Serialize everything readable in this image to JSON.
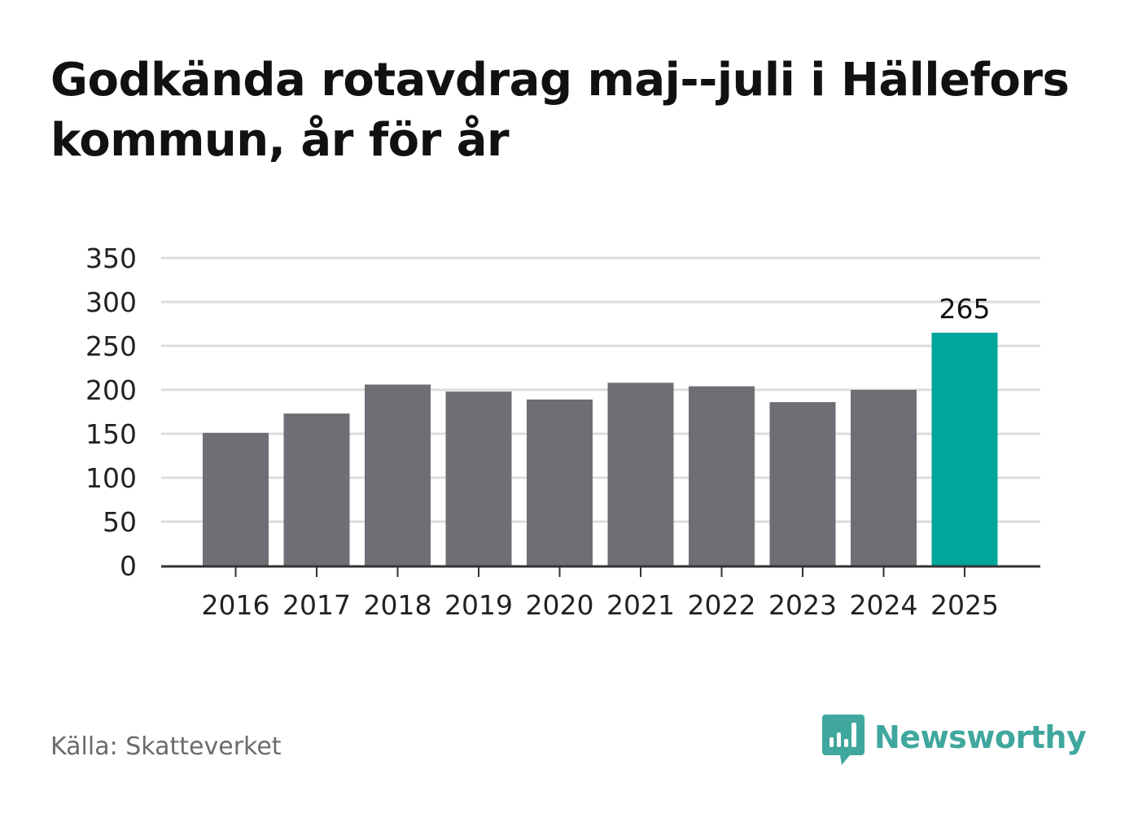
{
  "title": "Godkända rotavdrag maj--juli i Hällefors kommun, år för år",
  "source": "Källa: Skatteverket",
  "brand": {
    "name": "Newsworthy",
    "icon": "newsworthy-logo-icon",
    "color": "#3fa79d"
  },
  "chart_data": {
    "type": "bar",
    "categories": [
      "2016",
      "2017",
      "2018",
      "2019",
      "2020",
      "2021",
      "2022",
      "2023",
      "2024",
      "2025"
    ],
    "values": [
      151,
      173,
      206,
      198,
      189,
      208,
      204,
      186,
      200,
      265
    ],
    "ylim": [
      0,
      350
    ],
    "yticks": [
      0,
      50,
      100,
      150,
      200,
      250,
      300,
      350
    ],
    "grid": true,
    "highlight_index": 9,
    "data_labels": [
      {
        "index": 9,
        "text": "265"
      }
    ],
    "colors": {
      "bar": "#6f6e75",
      "highlight": "#00a59b",
      "grid": "#dcdcdc",
      "axis": "#333333",
      "tick_text": "#222222"
    }
  }
}
